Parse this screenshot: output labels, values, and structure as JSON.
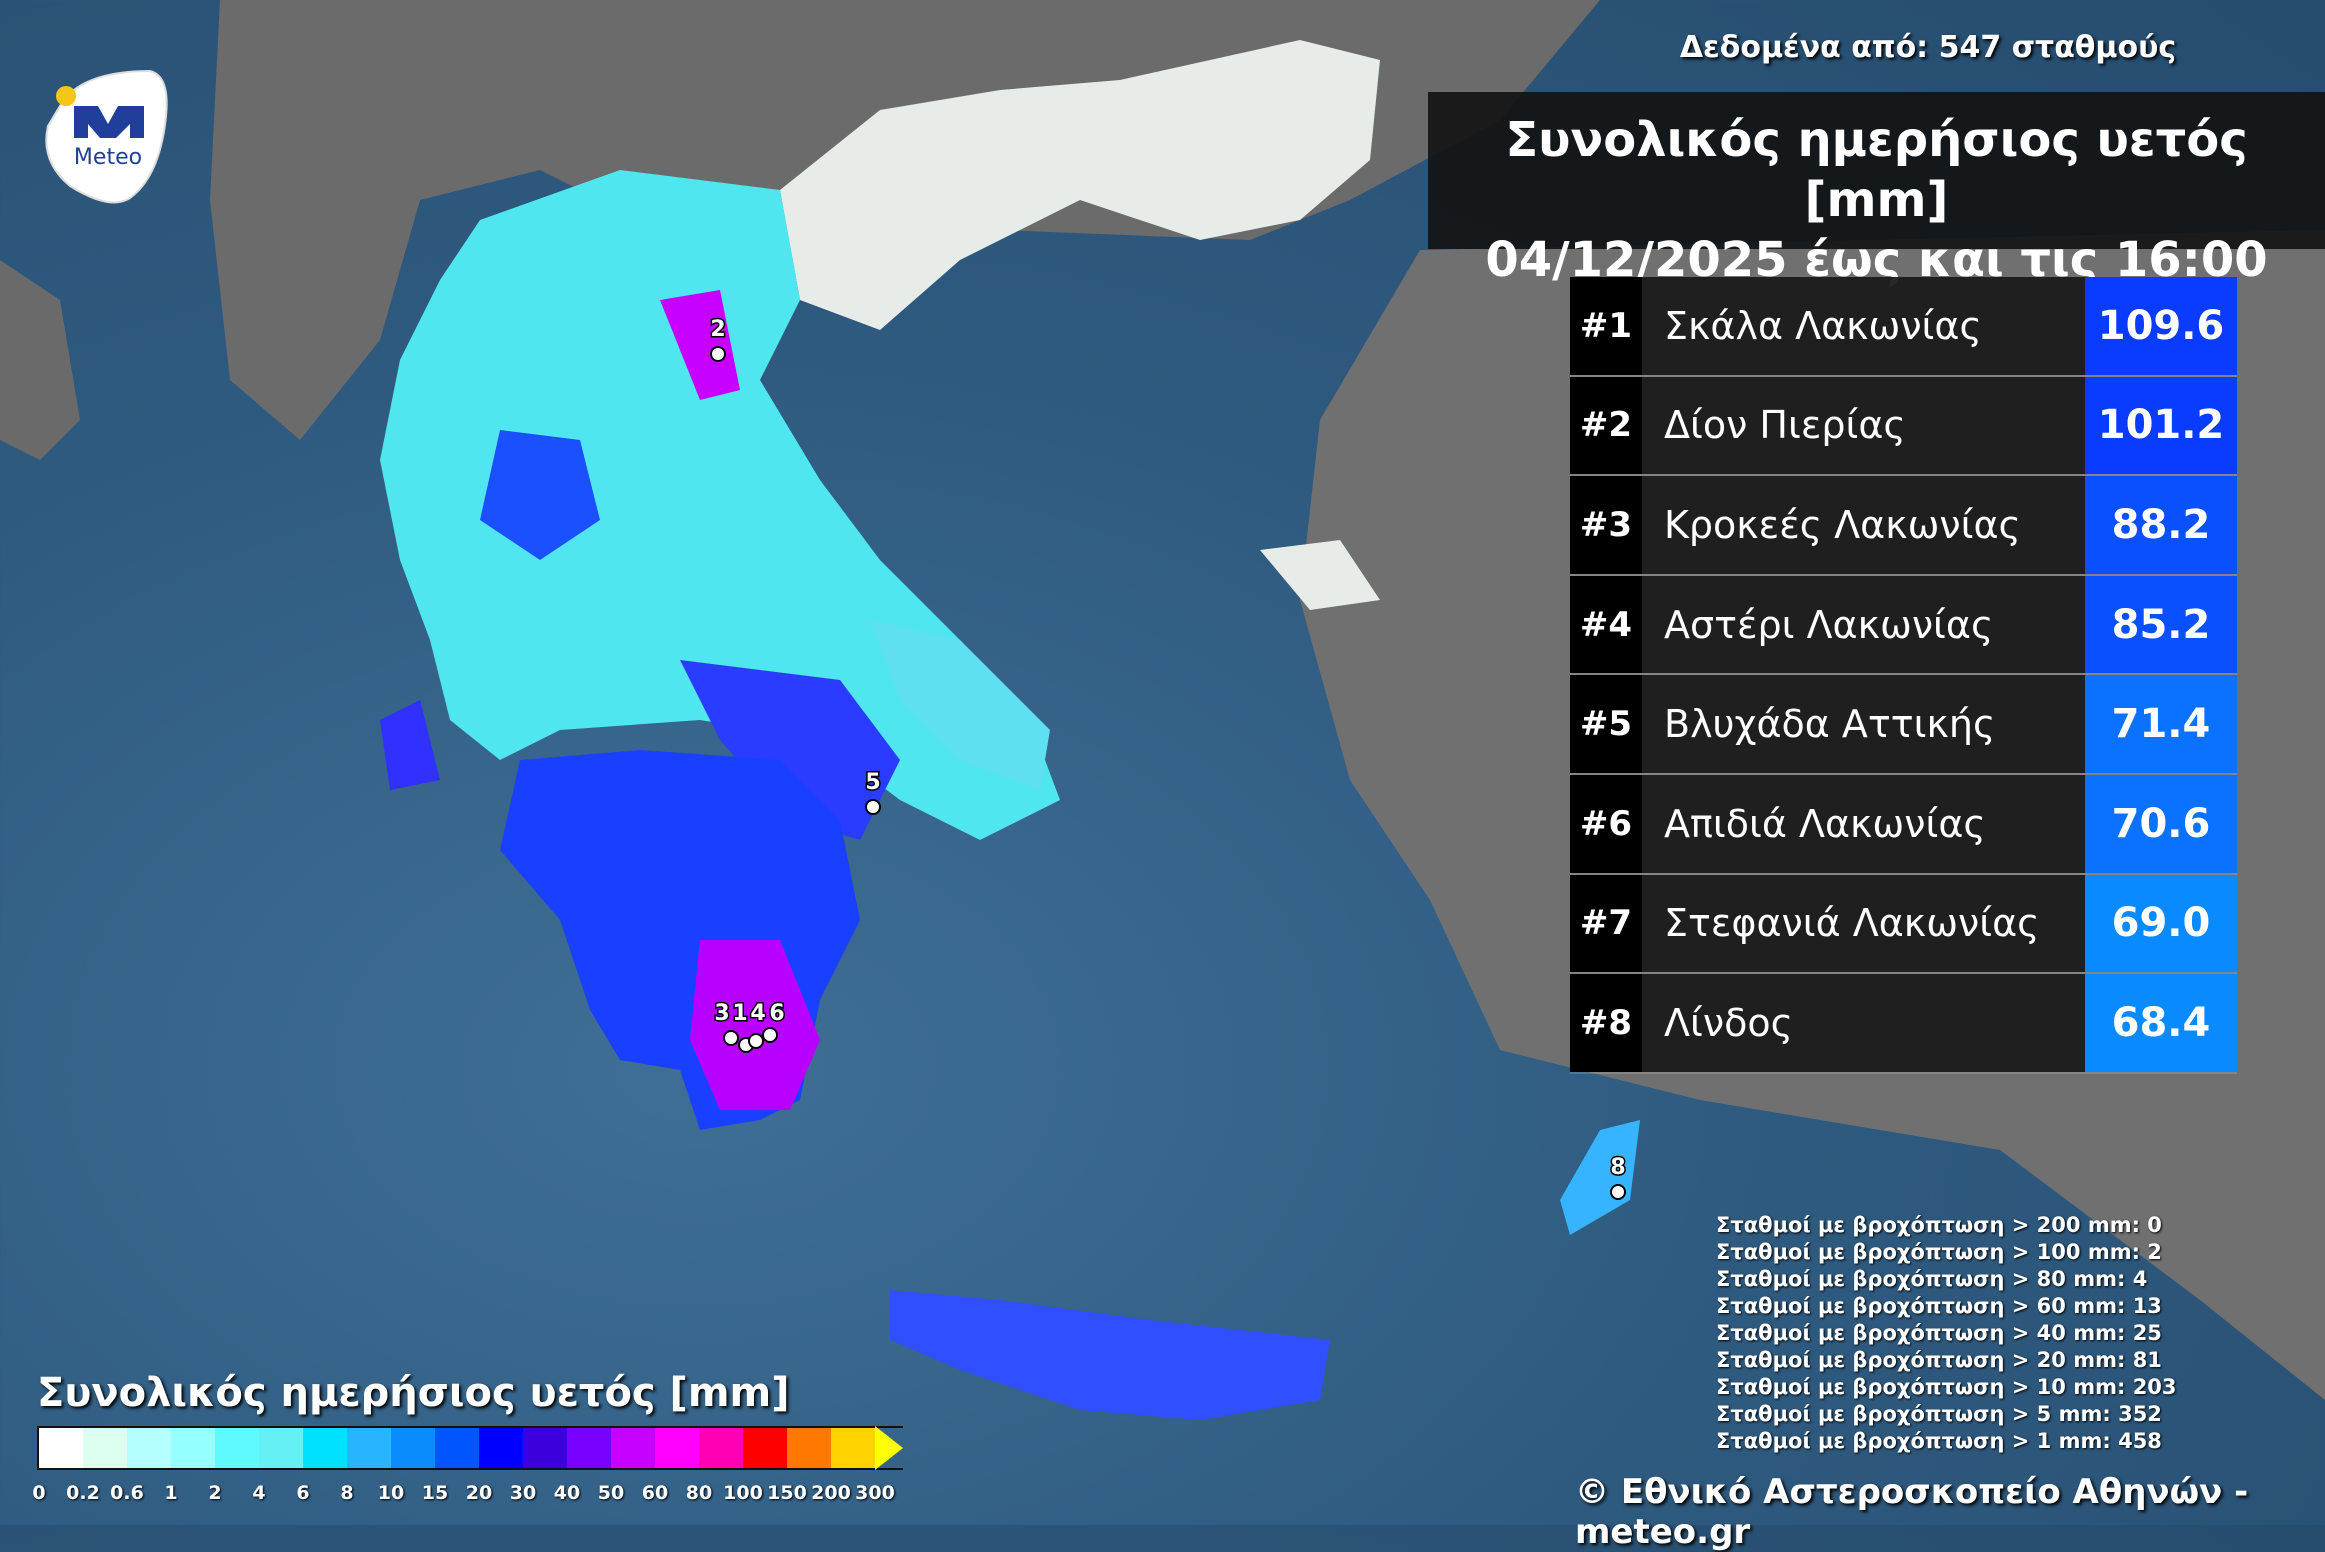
{
  "header": {
    "stations_total": "Δεδομένα από: 547 σταθμούς",
    "title_line1": "Συνολικός ημερήσιος υετός [mm]",
    "title_line2": "04/12/2025 έως και τις 16:00"
  },
  "logo": {
    "text": "Meteo",
    "colors": {
      "blue": "#1f3f9a",
      "yellow": "#f5c518"
    }
  },
  "ranking": [
    {
      "rank": "#1",
      "station": "Σκάλα Λακωνίας",
      "value": "109.6",
      "color": "#0a3cff"
    },
    {
      "rank": "#2",
      "station": "Δίον Πιερίας",
      "value": "101.2",
      "color": "#0a3cff"
    },
    {
      "rank": "#3",
      "station": "Κροκεές Λακωνίας",
      "value": "88.2",
      "color": "#0a50ff"
    },
    {
      "rank": "#4",
      "station": "Αστέρι Λακωνίας",
      "value": "85.2",
      "color": "#0a50ff"
    },
    {
      "rank": "#5",
      "station": "Βλυχάδα Αττικής",
      "value": "71.4",
      "color": "#0a72ff"
    },
    {
      "rank": "#6",
      "station": "Απιδιά Λακωνίας",
      "value": "70.6",
      "color": "#0a72ff"
    },
    {
      "rank": "#7",
      "station": "Στεφανιά Λακωνίας",
      "value": "69.0",
      "color": "#0a8aff"
    },
    {
      "rank": "#8",
      "station": "Λίνδος",
      "value": "68.4",
      "color": "#0a8aff"
    }
  ],
  "map_markers": [
    "1",
    "2",
    "3",
    "4",
    "5",
    "6",
    "8"
  ],
  "counts": [
    "Σταθμοί με βροχόπτωση > 200 mm: 0",
    "Σταθμοί με βροχόπτωση > 100 mm: 2",
    "Σταθμοί με βροχόπτωση > 80 mm: 4",
    "Σταθμοί με βροχόπτωση > 60 mm: 13",
    "Σταθμοί με βροχόπτωση > 40 mm: 25",
    "Σταθμοί με βροχόπτωση > 20 mm: 81",
    "Σταθμοί με βροχόπτωση > 10 mm: 203",
    "Σταθμοί με βροχόπτωση > 5 mm: 352",
    "Σταθμοί με βροχόπτωση > 1 mm: 458"
  ],
  "legend": {
    "title": "Συνολικός ημερήσιος υετός [mm]",
    "colors": [
      "#ffffff",
      "#dcfff0",
      "#b4ffff",
      "#96ffff",
      "#5ffaff",
      "#64f0f5",
      "#00e0ff",
      "#28b4ff",
      "#0a8cff",
      "#0055ff",
      "#0000ff",
      "#3c00dc",
      "#7800ff",
      "#c800ff",
      "#ff00ff",
      "#ff00b4",
      "#ff0000",
      "#ff7800",
      "#ffd200",
      "#ffff00"
    ],
    "ticks": [
      "0",
      "0.2",
      "0.6",
      "1",
      "2",
      "4",
      "6",
      "8",
      "10",
      "15",
      "20",
      "30",
      "40",
      "50",
      "60",
      "80",
      "100",
      "150",
      "200",
      "300"
    ]
  },
  "footer": {
    "copyright": "© Εθνικό Αστεροσκοπείο Αθηνών - meteo.gr"
  }
}
